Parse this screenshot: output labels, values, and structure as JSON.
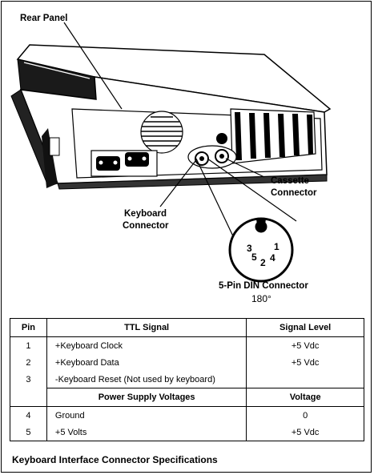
{
  "figure": {
    "rear_panel_label": "Rear Panel",
    "cassette_label_line1": "Cassette",
    "cassette_label_line2": "Connector",
    "keyboard_label_line1": "Keyboard",
    "keyboard_label_line2": "Connector",
    "din_title": "5-Pin DIN Connector",
    "din_angle": "180°",
    "din_pins": [
      "1",
      "2",
      "3",
      "4",
      "5"
    ]
  },
  "table": {
    "headers": {
      "pin": "Pin",
      "signal": "TTL Signal",
      "level": "Signal Level"
    },
    "signal_rows": [
      {
        "pin": "1",
        "signal": "+Keyboard Clock",
        "level": "+5 Vdc"
      },
      {
        "pin": "2",
        "signal": "+Keyboard Data",
        "level": "+5 Vdc"
      },
      {
        "pin": "3",
        "signal": "-Keyboard Reset (Not used by keyboard)",
        "level": ""
      }
    ],
    "power_headers": {
      "title": "Power Supply Voltages",
      "voltage": "Voltage"
    },
    "power_rows": [
      {
        "pin": "4",
        "signal": "Ground",
        "level": "0"
      },
      {
        "pin": "5",
        "signal": "+5 Volts",
        "level": "+5 Vdc"
      }
    ]
  },
  "caption": "Keyboard Interface Connector Specifications"
}
